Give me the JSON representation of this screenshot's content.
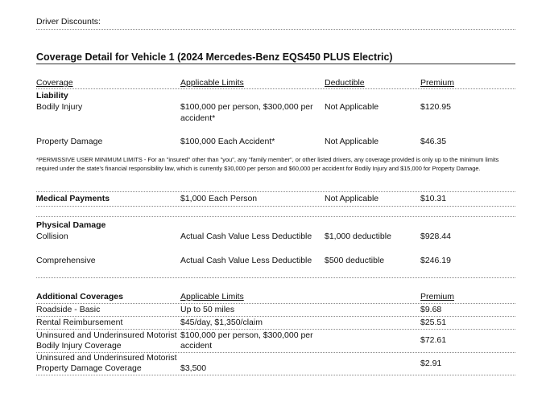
{
  "driver_discounts_label": "Driver Discounts:",
  "title": "Coverage Detail for Vehicle 1 (2024 Mercedes-Benz EQS450 PLUS Electric)",
  "headers": {
    "coverage": "Coverage",
    "limits": "Applicable Limits",
    "deductible": "Deductible",
    "premium": "Premium"
  },
  "liability": {
    "heading": "Liability",
    "bodily_injury": {
      "name": "Bodily Injury",
      "limits_line1": "$100,000 per person, $300,000 per",
      "limits_line2": "accident*",
      "deductible": "Not Applicable",
      "premium": "$120.95"
    },
    "property_damage": {
      "name": "Property Damage",
      "limits": "$100,000 Each Accident*",
      "deductible": "Not Applicable",
      "premium": "$46.35"
    }
  },
  "footnote": "*PERMISSIVE USER MINIMUM LIMITS - For an \"insured\" other than \"you\", any \"family member\", or other listed drivers, any coverage provided is only up to the minimum limits required under the state's financial responsibility law, which is currently $30,000 per person and $60,000 per accident for Bodily Injury and $15,000 for Property Damage.",
  "medical": {
    "name": "Medical Payments",
    "limits": "$1,000 Each Person",
    "deductible": "Not Applicable",
    "premium": "$10.31"
  },
  "physical": {
    "heading": "Physical Damage",
    "collision": {
      "name": "Collision",
      "limits": "Actual Cash Value Less Deductible",
      "deductible": "$1,000 deductible",
      "premium": "$928.44"
    },
    "comprehensive": {
      "name": "Comprehensive",
      "limits": "Actual Cash Value Less Deductible",
      "deductible": "$500 deductible",
      "premium": "$246.19"
    }
  },
  "additional": {
    "heading": "Additional Coverages",
    "limits_header": "Applicable Limits",
    "premium_header": "Premium",
    "rows": [
      {
        "name1": "Roadside - Basic",
        "limits1": "Up to 50 miles",
        "premium": "$9.68"
      },
      {
        "name1": "Rental Reimbursement",
        "limits1": "$45/day, $1,350/claim",
        "premium": "$25.51"
      },
      {
        "name1": "Uninsured and Underinsured Motorist",
        "name2": "Bodily Injury Coverage",
        "limits1": "$100,000 per person, $300,000 per",
        "limits2": "accident",
        "premium": "$72.61"
      },
      {
        "name1": "Uninsured and Underinsured Motorist",
        "name2": "Property Damage Coverage",
        "limits2": "$3,500",
        "premium": "$2.91"
      }
    ]
  }
}
